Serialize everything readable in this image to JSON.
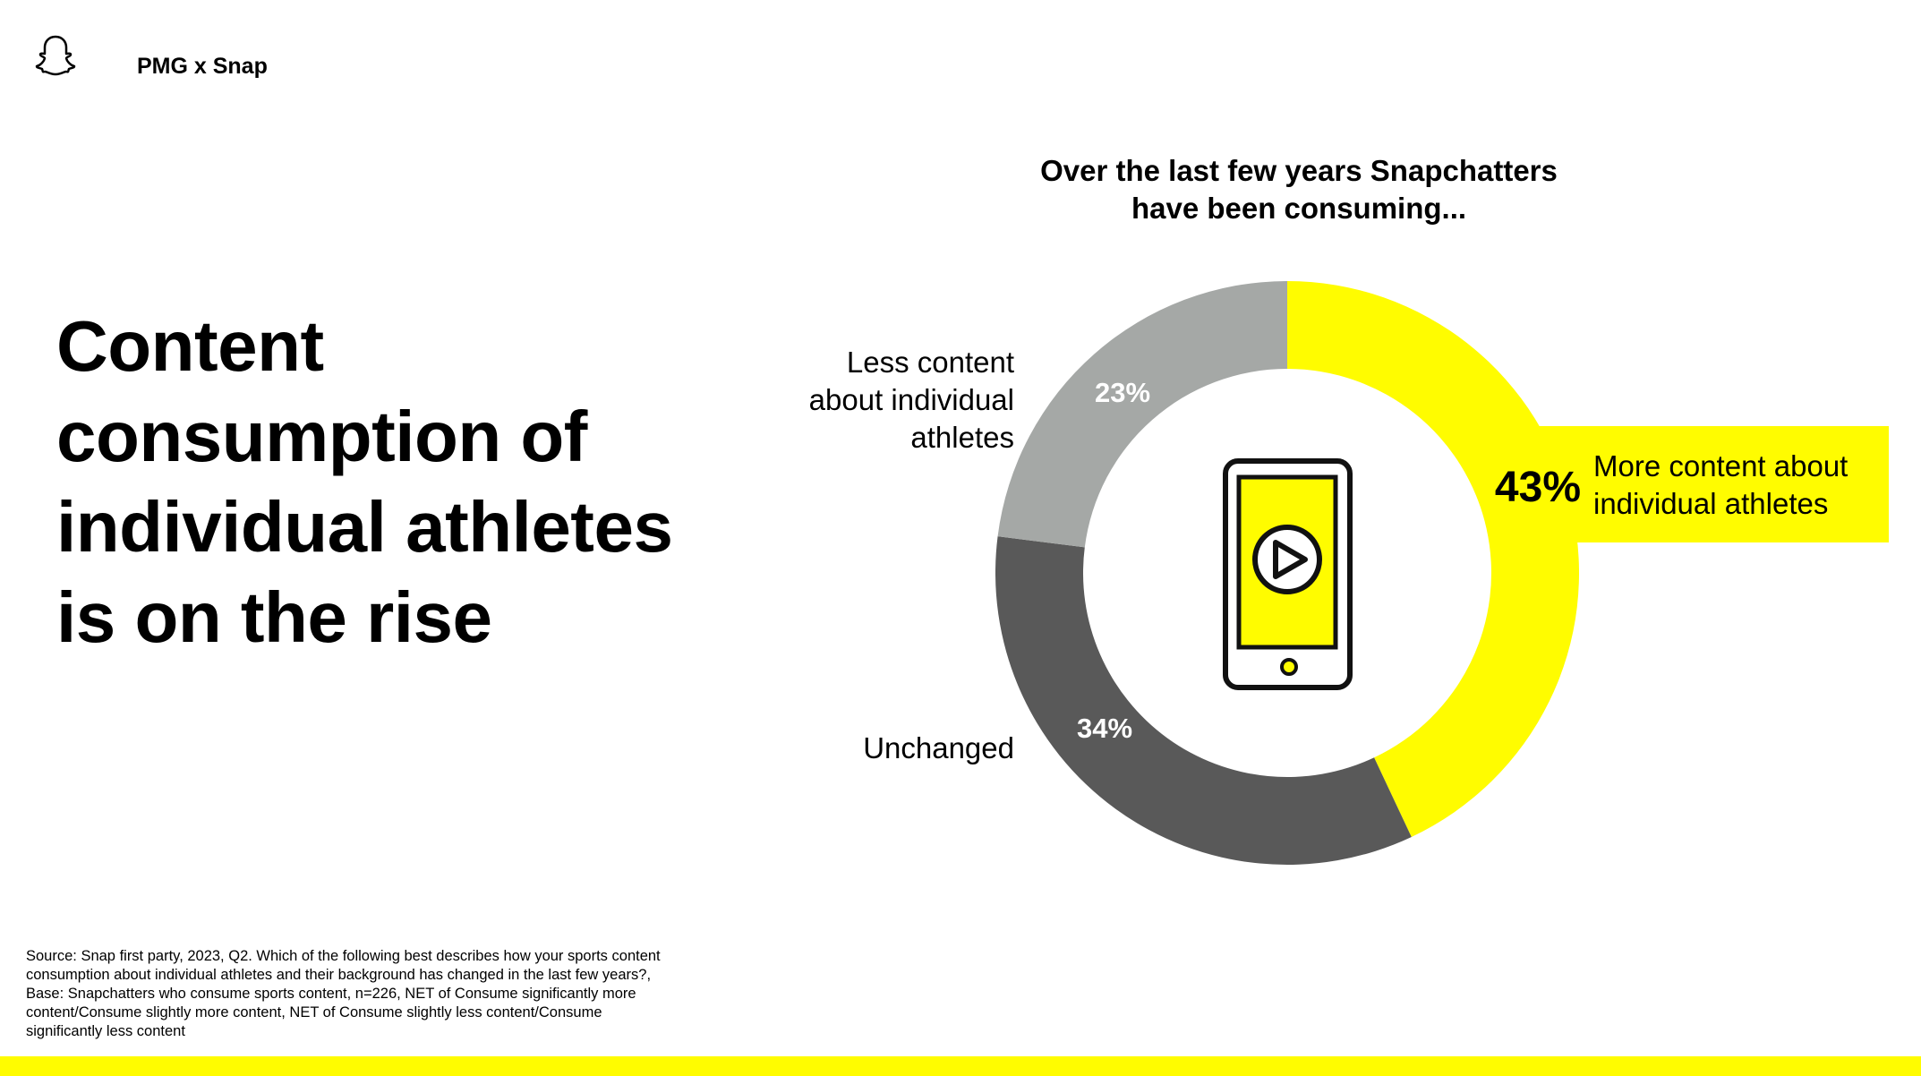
{
  "header": {
    "brand": "PMG x Snap",
    "logo_icon": "snapchat-ghost-icon"
  },
  "headline": [
    "Content",
    "consumption of",
    "individual athletes",
    "is on the rise"
  ],
  "chart_data": {
    "type": "pie",
    "donut": true,
    "title": [
      "Over the last few years Snapchatters",
      "have been consuming..."
    ],
    "categories": [
      "More content about individual athletes",
      "Unchanged",
      "Less content about individual athletes"
    ],
    "values": [
      43,
      34,
      23
    ],
    "value_labels": [
      "43%",
      "34%",
      "23%"
    ],
    "colors": [
      "#fffc00",
      "#595959",
      "#a5a8a6"
    ],
    "label_lines": {
      "more": [
        "More content about",
        "individual athletes"
      ],
      "unchanged": [
        "Unchanged"
      ],
      "less": [
        "Less content",
        "about individual",
        "athletes"
      ]
    },
    "center_icon": "phone-play-icon"
  },
  "source": "Source: Snap first party, 2023, Q2. Which of the following best describes how your sports content consumption about individual athletes and their background has changed in the last few years?, Base: Snapchatters who consume sports content, n=226, NET of Consume significantly more content/Consume slightly more content, NET of Consume slightly less content/Consume significantly less content",
  "accent_color": "#fffc00"
}
